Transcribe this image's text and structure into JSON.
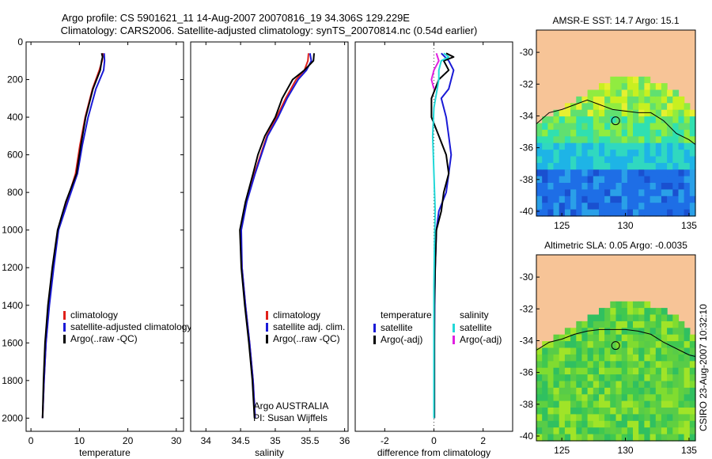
{
  "header": {
    "line1": "Argo profile: CS 5901621_11 14-Aug-2007 20070816_19 34.306S 129.229E",
    "line2": "Climatology: CARS2006. Satellite-adjusted climatology: synTS_20070814.nc (0.54d earlier)"
  },
  "credit": "CSIRO 23-Aug-2007 10:32:10",
  "colors": {
    "climatology": "#e0201a",
    "satellite": "#1a1ad6",
    "argo": "#000000",
    "salinity_satellite": "#22d8d8",
    "salinity_argo": "#e020e0",
    "land": "#f7c497",
    "contour": "#000000"
  },
  "chart_data": [
    {
      "id": "temperature",
      "type": "line",
      "xlabel": "temperature",
      "ylabel": "",
      "xlim": [
        -1,
        31.5
      ],
      "ylim": [
        2070,
        0
      ],
      "xticks": [
        0,
        10,
        20,
        30
      ],
      "yticks": [
        0,
        200,
        400,
        600,
        800,
        1000,
        1200,
        1400,
        1600,
        1800,
        2000
      ],
      "legend_position": "lower-right",
      "legend": [
        "climatology",
        "satellite-adjusted climatology",
        "Argo(..raw -QC)"
      ],
      "series": [
        {
          "name": "climatology",
          "color_key": "climatology",
          "points": [
            [
              14.9,
              60
            ],
            [
              14.7,
              100
            ],
            [
              14.1,
              150
            ],
            [
              12.7,
              250
            ],
            [
              11.2,
              400
            ],
            [
              10.1,
              550
            ],
            [
              9.2,
              700
            ],
            [
              7.4,
              850
            ],
            [
              5.6,
              1000
            ],
            [
              4.6,
              1200
            ],
            [
              3.7,
              1400
            ],
            [
              3.1,
              1600
            ],
            [
              2.7,
              1800
            ],
            [
              2.4,
              2000
            ]
          ]
        },
        {
          "name": "satellite-adjusted climatology",
          "color_key": "satellite",
          "points": [
            [
              15.1,
              60
            ],
            [
              15.2,
              100
            ],
            [
              15.0,
              150
            ],
            [
              13.4,
              250
            ],
            [
              11.8,
              400
            ],
            [
              10.6,
              550
            ],
            [
              9.6,
              700
            ],
            [
              7.6,
              850
            ],
            [
              5.7,
              1000
            ],
            [
              4.7,
              1200
            ],
            [
              3.8,
              1400
            ],
            [
              3.1,
              1600
            ],
            [
              2.7,
              1800
            ],
            [
              2.4,
              2000
            ]
          ]
        },
        {
          "name": "Argo(..raw -QC)",
          "color_key": "argo",
          "points": [
            [
              14.6,
              60
            ],
            [
              14.8,
              80
            ],
            [
              14.6,
              100
            ],
            [
              14.3,
              150
            ],
            [
              12.8,
              250
            ],
            [
              11.3,
              400
            ],
            [
              10.3,
              550
            ],
            [
              9.4,
              700
            ],
            [
              7.2,
              850
            ],
            [
              5.5,
              1000
            ],
            [
              4.4,
              1200
            ],
            [
              3.5,
              1400
            ],
            [
              2.9,
              1600
            ],
            [
              2.6,
              1800
            ],
            [
              2.4,
              2000
            ]
          ]
        }
      ]
    },
    {
      "id": "salinity",
      "type": "line",
      "xlabel": "salinity",
      "ylabel": "",
      "xlim": [
        33.78,
        36.05
      ],
      "ylim": [
        2070,
        0
      ],
      "xticks": [
        34,
        34.5,
        35,
        35.5,
        36
      ],
      "yticks": [],
      "legend_position": "lower-right",
      "legend": [
        "climatology",
        "satellite adj. clim.",
        "Argo(..raw -QC)"
      ],
      "annotations": [
        "Argo AUSTRALIA",
        "PI: Susan Wijffels"
      ],
      "series": [
        {
          "name": "climatology",
          "color_key": "climatology",
          "points": [
            [
              35.48,
              60
            ],
            [
              35.47,
              100
            ],
            [
              35.42,
              150
            ],
            [
              35.3,
              200
            ],
            [
              35.15,
              300
            ],
            [
              35.02,
              400
            ],
            [
              34.88,
              500
            ],
            [
              34.79,
              600
            ],
            [
              34.7,
              700
            ],
            [
              34.58,
              850
            ],
            [
              34.5,
              1000
            ],
            [
              34.52,
              1200
            ],
            [
              34.57,
              1400
            ],
            [
              34.63,
              1600
            ],
            [
              34.68,
              1800
            ],
            [
              34.71,
              2000
            ]
          ]
        },
        {
          "name": "satellite adj. clim.",
          "color_key": "satellite",
          "points": [
            [
              35.5,
              60
            ],
            [
              35.52,
              100
            ],
            [
              35.45,
              150
            ],
            [
              35.33,
              200
            ],
            [
              35.17,
              300
            ],
            [
              35.04,
              400
            ],
            [
              34.89,
              500
            ],
            [
              34.8,
              600
            ],
            [
              34.71,
              700
            ],
            [
              34.59,
              850
            ],
            [
              34.51,
              1000
            ],
            [
              34.52,
              1200
            ],
            [
              34.57,
              1400
            ],
            [
              34.63,
              1600
            ],
            [
              34.68,
              1800
            ],
            [
              34.71,
              2000
            ]
          ]
        },
        {
          "name": "Argo(..raw -QC)",
          "color_key": "argo",
          "points": [
            [
              35.56,
              60
            ],
            [
              35.55,
              100
            ],
            [
              35.42,
              150
            ],
            [
              35.25,
              200
            ],
            [
              35.1,
              300
            ],
            [
              35.0,
              400
            ],
            [
              34.85,
              500
            ],
            [
              34.75,
              600
            ],
            [
              34.68,
              700
            ],
            [
              34.57,
              850
            ],
            [
              34.49,
              1000
            ],
            [
              34.51,
              1200
            ],
            [
              34.56,
              1400
            ],
            [
              34.62,
              1600
            ],
            [
              34.67,
              1800
            ],
            [
              34.7,
              2000
            ]
          ]
        }
      ]
    },
    {
      "id": "difference",
      "type": "line",
      "xlabel": "difference from climatology",
      "ylabel": "",
      "xlim": [
        -3.2,
        3.2
      ],
      "ylim": [
        2070,
        0
      ],
      "xticks": [
        -2,
        0,
        2
      ],
      "yticks": [],
      "legend_position": "lower-center",
      "legend": [
        "temperature",
        "satellite",
        "Argo(-adj)",
        "salinity",
        "satellite",
        "Argo(-adj)"
      ],
      "series": [
        {
          "name": "satellite",
          "group": "temperature",
          "color_key": "satellite",
          "points": [
            [
              0.3,
              60
            ],
            [
              0.6,
              100
            ],
            [
              0.8,
              150
            ],
            [
              0.7,
              200
            ],
            [
              0.6,
              250
            ],
            [
              0.3,
              300
            ],
            [
              0.5,
              400
            ],
            [
              0.6,
              500
            ],
            [
              0.7,
              600
            ],
            [
              0.6,
              700
            ],
            [
              0.5,
              800
            ],
            [
              0.2,
              900
            ],
            [
              0.1,
              1000
            ],
            [
              0.05,
              1200
            ],
            [
              0.03,
              1400
            ],
            [
              0.02,
              1600
            ],
            [
              0.02,
              1800
            ],
            [
              0.02,
              2000
            ]
          ]
        },
        {
          "name": "Argo(-adj)",
          "group": "temperature",
          "color_key": "argo",
          "points": [
            [
              0.5,
              60
            ],
            [
              0.8,
              80
            ],
            [
              0.4,
              100
            ],
            [
              0.6,
              150
            ],
            [
              0.2,
              200
            ],
            [
              -0.1,
              300
            ],
            [
              -0.1,
              400
            ],
            [
              0.2,
              500
            ],
            [
              0.5,
              600
            ],
            [
              0.6,
              700
            ],
            [
              0.4,
              800
            ],
            [
              0.3,
              900
            ],
            [
              0.1,
              1000
            ],
            [
              0.05,
              1200
            ],
            [
              0.02,
              1400
            ],
            [
              0.02,
              1600
            ],
            [
              0.02,
              1800
            ],
            [
              0.02,
              2000
            ]
          ]
        },
        {
          "name": "satellite",
          "group": "salinity",
          "color_key": "salinity_satellite",
          "points": [
            [
              0.4,
              60
            ],
            [
              0.6,
              80
            ],
            [
              0.3,
              100
            ],
            [
              0.2,
              150
            ],
            [
              0.2,
              200
            ],
            [
              0.0,
              350
            ],
            [
              -0.05,
              500
            ],
            [
              0.0,
              700
            ],
            [
              0.05,
              900
            ],
            [
              0.02,
              1100
            ],
            [
              0.0,
              1300
            ],
            [
              0.0,
              1500
            ],
            [
              0.0,
              1700
            ],
            [
              0.0,
              2000
            ]
          ]
        },
        {
          "name": "Argo(-adj)",
          "group": "salinity",
          "color_key": "salinity_argo",
          "points": [
            [
              0.1,
              60
            ],
            [
              0.2,
              100
            ],
            [
              0.0,
              150
            ],
            [
              -0.1,
              200
            ],
            [
              0.0,
              250
            ]
          ]
        }
      ]
    },
    {
      "id": "sst_map",
      "type": "heatmap",
      "title": "AMSR-E SST: 14.7 Argo: 15.1",
      "xlim": [
        123,
        135.5
      ],
      "ylim": [
        -40.3,
        -28.6
      ],
      "xticks": [
        125,
        130,
        135
      ],
      "yticks": [
        -30,
        -32,
        -34,
        -36,
        -38,
        -40
      ],
      "float_position": [
        129.229,
        -34.306
      ],
      "coast_lat": [
        [
          123,
          -34.6
        ],
        [
          124,
          -33.9
        ],
        [
          125,
          -33.5
        ],
        [
          126,
          -33.2
        ],
        [
          127,
          -32.5
        ],
        [
          128,
          -32.0
        ],
        [
          129,
          -31.6
        ],
        [
          130,
          -31.5
        ],
        [
          131,
          -31.5
        ],
        [
          132,
          -31.8
        ],
        [
          133,
          -32.1
        ],
        [
          134,
          -32.6
        ],
        [
          135,
          -33.4
        ],
        [
          135.5,
          -34.0
        ]
      ],
      "contour_lat": [
        [
          123,
          -34.5
        ],
        [
          124,
          -33.8
        ],
        [
          125,
          -33.6
        ],
        [
          126,
          -33.3
        ],
        [
          127,
          -33.0
        ],
        [
          128,
          -33.3
        ],
        [
          129,
          -33.6
        ],
        [
          130,
          -33.7
        ],
        [
          131,
          -33.8
        ],
        [
          132,
          -33.8
        ],
        [
          133,
          -34.3
        ],
        [
          134,
          -35.1
        ],
        [
          135,
          -35.5
        ],
        [
          135.5,
          -35.8
        ]
      ]
    },
    {
      "id": "sla_map",
      "type": "heatmap",
      "title": "Altimetric SLA: 0.05 Argo: -0.0035",
      "xlim": [
        123,
        135.5
      ],
      "ylim": [
        -40.3,
        -28.6
      ],
      "xticks": [
        125,
        130,
        135
      ],
      "yticks": [
        -30,
        -32,
        -34,
        -36,
        -38,
        -40
      ],
      "float_position": [
        129.229,
        -34.306
      ],
      "coast_lat": [
        [
          123,
          -34.6
        ],
        [
          124,
          -33.9
        ],
        [
          125,
          -33.5
        ],
        [
          126,
          -33.2
        ],
        [
          127,
          -32.5
        ],
        [
          128,
          -32.0
        ],
        [
          129,
          -31.6
        ],
        [
          130,
          -31.5
        ],
        [
          131,
          -31.5
        ],
        [
          132,
          -31.8
        ],
        [
          133,
          -32.1
        ],
        [
          134,
          -32.6
        ],
        [
          135,
          -33.4
        ],
        [
          135.5,
          -34.0
        ]
      ],
      "contour_lat": [
        [
          123,
          -34.6
        ],
        [
          124,
          -34.1
        ],
        [
          125,
          -33.9
        ],
        [
          126,
          -33.6
        ],
        [
          127,
          -33.4
        ],
        [
          128,
          -33.3
        ],
        [
          129,
          -33.3
        ],
        [
          130,
          -33.3
        ],
        [
          131,
          -33.4
        ],
        [
          132,
          -33.6
        ],
        [
          133,
          -34.1
        ],
        [
          134,
          -34.5
        ],
        [
          135,
          -34.9
        ],
        [
          135.5,
          -35.0
        ]
      ]
    }
  ]
}
